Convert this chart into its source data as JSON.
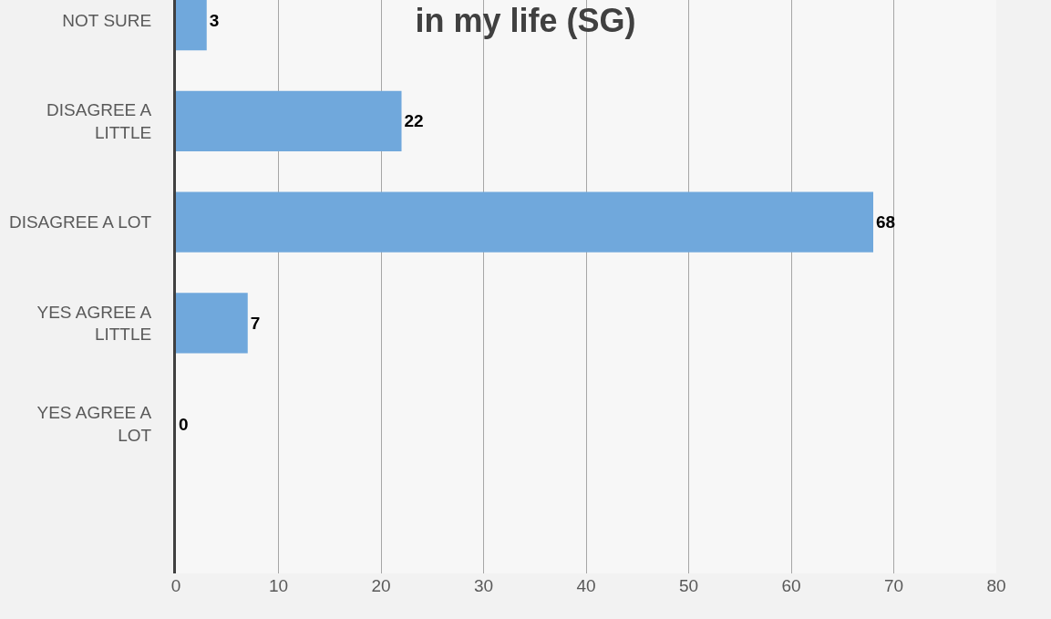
{
  "chart_data": {
    "type": "bar",
    "orientation": "horizontal",
    "title": "in my life (SG)",
    "categories": [
      "NOT SURE",
      "DISAGREE A\nLITTLE",
      "DISAGREE A LOT",
      "YES AGREE A\nLITTLE",
      "YES AGREE A\nLOT",
      null
    ],
    "values": [
      3,
      22,
      68,
      7,
      0,
      null
    ],
    "color": "#70a8dc",
    "xlim": [
      0,
      80
    ],
    "xticks": [
      0,
      10,
      20,
      30,
      40,
      50,
      60,
      70,
      80
    ],
    "grid": "x",
    "data_labels": true
  }
}
